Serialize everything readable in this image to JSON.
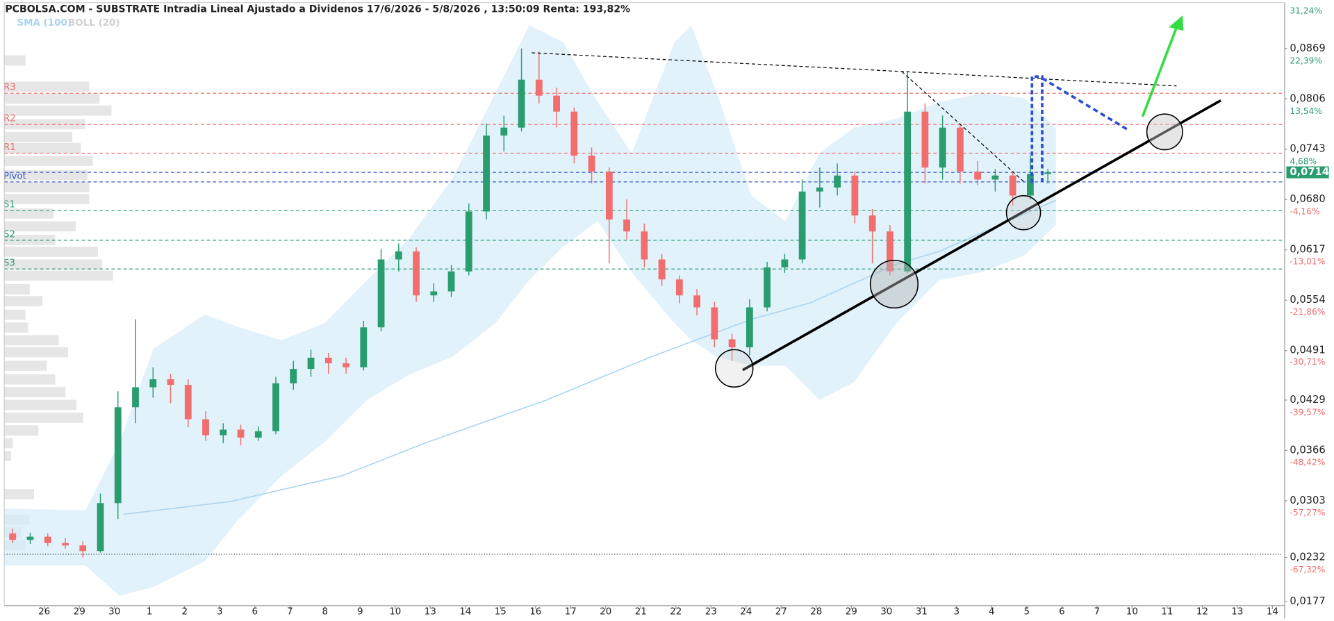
{
  "chart_data": {
    "type": "candlestick",
    "title": "PCBOLSA.COM - SUBSTRATE Intradia Lineal Ajustado a Dividenos 17/6/2026 - 5/8/2026 , 13:50:09 Renta: 193,82%",
    "xlim": [
      -1.14,
      35.3
    ],
    "xticks": [
      {
        "value": 0,
        "label": "26"
      },
      {
        "value": 1,
        "label": "29"
      },
      {
        "value": 2,
        "label": "30"
      },
      {
        "value": 3,
        "label": "1"
      },
      {
        "value": 4,
        "label": "2"
      },
      {
        "value": 5,
        "label": "3"
      },
      {
        "value": 6,
        "label": "6"
      },
      {
        "value": 7,
        "label": "7"
      },
      {
        "value": 8,
        "label": "8"
      },
      {
        "value": 9,
        "label": "9"
      },
      {
        "value": 10,
        "label": "10"
      },
      {
        "value": 11,
        "label": "13"
      },
      {
        "value": 12,
        "label": "14"
      },
      {
        "value": 13,
        "label": "15"
      },
      {
        "value": 14,
        "label": "16"
      },
      {
        "value": 15,
        "label": "17"
      },
      {
        "value": 16,
        "label": "20"
      },
      {
        "value": 17,
        "label": "21"
      },
      {
        "value": 18,
        "label": "22"
      },
      {
        "value": 19,
        "label": "23"
      },
      {
        "value": 20,
        "label": "24"
      },
      {
        "value": 21,
        "label": "27"
      },
      {
        "value": 22,
        "label": "28"
      },
      {
        "value": 23,
        "label": "29"
      },
      {
        "value": 24,
        "label": "30"
      },
      {
        "value": 25,
        "label": "31"
      },
      {
        "value": 26,
        "label": "3"
      },
      {
        "value": 27,
        "label": "4"
      },
      {
        "value": 28,
        "label": "5"
      },
      {
        "value": 29,
        "label": "6"
      },
      {
        "value": 30,
        "label": "7"
      },
      {
        "value": 31,
        "label": "10"
      },
      {
        "value": 32,
        "label": "11"
      },
      {
        "value": 33,
        "label": "12"
      },
      {
        "value": 34,
        "label": "13"
      },
      {
        "value": 35,
        "label": "14"
      }
    ],
    "ylim": [
      0.0177,
      0.0919
    ],
    "yticks": [
      {
        "value": 0.0869,
        "label": "0,0869"
      },
      {
        "value": 0.0806,
        "label": "0,0806"
      },
      {
        "value": 0.0743,
        "label": "0,0743"
      },
      {
        "value": 0.068,
        "label": "0,0680"
      },
      {
        "value": 0.0617,
        "label": "0,0617"
      },
      {
        "value": 0.0554,
        "label": "0,0554"
      },
      {
        "value": 0.0491,
        "label": "0,0491"
      },
      {
        "value": 0.0429,
        "label": "0,0429"
      },
      {
        "value": 0.0366,
        "label": "0,0366"
      },
      {
        "value": 0.0303,
        "label": "0,0303"
      },
      {
        "value": 0.0232,
        "label": "0,0232"
      },
      {
        "value": 0.0177,
        "label": "0,0177"
      }
    ],
    "y2lim": [
      -72.87,
      31.69
    ],
    "y2ticks": [
      {
        "value": 31.24,
        "label": "31,24%"
      },
      {
        "value": 22.39,
        "label": "22,39%"
      },
      {
        "value": 13.54,
        "label": "13,54%"
      },
      {
        "value": 4.68,
        "label": "4,68%"
      },
      {
        "value": -4.16,
        "label": "-4,16%"
      },
      {
        "value": -13.01,
        "label": "-13,01%"
      },
      {
        "value": -21.86,
        "label": "-21,86%"
      },
      {
        "value": -30.71,
        "label": "-30,71%"
      },
      {
        "value": -39.57,
        "label": "-39,57%"
      },
      {
        "value": -48.42,
        "label": "-48,42%"
      },
      {
        "value": -57.27,
        "label": "-57,27%"
      },
      {
        "value": -67.32,
        "label": "-67,32%"
      }
    ],
    "up_color": "#2a9d6f",
    "down_color": "#f26d6d",
    "candles": {
      "x": [
        -0.9,
        -0.4,
        0.1,
        0.6,
        1.1,
        1.6,
        2.1,
        2.6,
        3.1,
        3.6,
        4.1,
        4.6,
        5.1,
        5.6,
        6.1,
        6.6,
        7.1,
        7.6,
        8.1,
        8.6,
        9.1,
        9.6,
        10.1,
        10.6,
        11.1,
        11.6,
        12.1,
        12.6,
        13.1,
        13.6,
        14.1,
        14.6,
        15.1,
        15.6,
        16.1,
        16.6,
        17.1,
        17.6,
        18.1,
        18.6,
        19.1,
        19.6,
        20.1,
        20.6,
        21.1,
        21.6,
        22.1,
        22.6,
        23.1,
        23.6,
        24.1,
        24.6,
        25.1,
        25.6,
        26.1,
        26.6,
        27.1,
        27.6,
        28.1,
        28.6
      ],
      "open": [
        0.0262,
        0.0254,
        0.0258,
        0.025,
        0.0247,
        0.024,
        0.03,
        0.042,
        0.0445,
        0.0455,
        0.0448,
        0.0405,
        0.0385,
        0.0392,
        0.0382,
        0.039,
        0.045,
        0.0468,
        0.0482,
        0.0475,
        0.047,
        0.052,
        0.0605,
        0.0615,
        0.056,
        0.0565,
        0.059,
        0.0665,
        0.076,
        0.077,
        0.083,
        0.081,
        0.079,
        0.0735,
        0.0715,
        0.0655,
        0.064,
        0.0605,
        0.058,
        0.056,
        0.0545,
        0.0505,
        0.0495,
        0.0545,
        0.0595,
        0.0605,
        0.069,
        0.0695,
        0.071,
        0.066,
        0.064,
        0.059,
        0.079,
        0.072,
        0.077,
        0.0715,
        0.0705,
        0.071,
        0.0685,
        0.0712
      ],
      "high": [
        0.0268,
        0.0263,
        0.0262,
        0.0256,
        0.0252,
        0.0312,
        0.044,
        0.053,
        0.047,
        0.0462,
        0.0455,
        0.0415,
        0.04,
        0.0398,
        0.0396,
        0.0458,
        0.0478,
        0.0492,
        0.0488,
        0.0482,
        0.0528,
        0.0618,
        0.0625,
        0.062,
        0.0575,
        0.0598,
        0.0675,
        0.0775,
        0.0785,
        0.0869,
        0.0865,
        0.082,
        0.0795,
        0.0745,
        0.072,
        0.068,
        0.065,
        0.0612,
        0.0585,
        0.0568,
        0.0552,
        0.0512,
        0.0555,
        0.0602,
        0.0612,
        0.0705,
        0.072,
        0.0725,
        0.0715,
        0.0668,
        0.0648,
        0.084,
        0.08,
        0.0785,
        0.0775,
        0.0728,
        0.0718,
        0.0715,
        0.0735,
        0.0718
      ],
      "low": [
        0.025,
        0.0249,
        0.0246,
        0.0243,
        0.0232,
        0.0238,
        0.028,
        0.04,
        0.0432,
        0.0425,
        0.0395,
        0.0378,
        0.0375,
        0.0372,
        0.0378,
        0.0386,
        0.0442,
        0.0458,
        0.0462,
        0.0462,
        0.0466,
        0.0515,
        0.059,
        0.0552,
        0.0552,
        0.0558,
        0.0585,
        0.0655,
        0.074,
        0.0765,
        0.08,
        0.077,
        0.0725,
        0.07,
        0.06,
        0.063,
        0.0595,
        0.0572,
        0.055,
        0.0535,
        0.0495,
        0.0478,
        0.0485,
        0.054,
        0.0588,
        0.06,
        0.067,
        0.0685,
        0.065,
        0.06,
        0.0585,
        0.0588,
        0.07,
        0.0705,
        0.07,
        0.0698,
        0.069,
        0.0672,
        0.068,
        0.07
      ],
      "close": [
        0.0254,
        0.0258,
        0.025,
        0.0247,
        0.024,
        0.03,
        0.042,
        0.0445,
        0.0455,
        0.0448,
        0.0405,
        0.0385,
        0.0392,
        0.0382,
        0.039,
        0.045,
        0.0468,
        0.0482,
        0.0475,
        0.047,
        0.052,
        0.0605,
        0.0615,
        0.056,
        0.0565,
        0.059,
        0.0665,
        0.076,
        0.077,
        0.083,
        0.081,
        0.079,
        0.0735,
        0.0715,
        0.0655,
        0.064,
        0.0605,
        0.058,
        0.056,
        0.0545,
        0.0505,
        0.0495,
        0.0545,
        0.0595,
        0.0605,
        0.069,
        0.0695,
        0.071,
        0.066,
        0.064,
        0.059,
        0.079,
        0.072,
        0.077,
        0.0715,
        0.0705,
        0.071,
        0.0685,
        0.0712,
        0.0714
      ]
    },
    "bollinger": {
      "name": "BOLL (20)",
      "color": "#d6ecfa",
      "x": [
        -1.14,
        1.17,
        2.14,
        3.11,
        4.57,
        5.55,
        6.76,
        7.98,
        9.2,
        10.41,
        11.63,
        12.85,
        13.82,
        14.79,
        15.77,
        16.74,
        17.96,
        18.44,
        19.17,
        20.15,
        21.12,
        22.09,
        23.07,
        24.28,
        25.5,
        26.72,
        27.93,
        28.83
      ],
      "upper": [
        0.0293,
        0.0291,
        0.0376,
        0.0493,
        0.0536,
        0.052,
        0.0504,
        0.0525,
        0.0579,
        0.0632,
        0.0706,
        0.0813,
        0.0898,
        0.0877,
        0.0802,
        0.0738,
        0.0877,
        0.0898,
        0.0813,
        0.0685,
        0.0653,
        0.0738,
        0.077,
        0.0781,
        0.0802,
        0.0813,
        0.0807,
        0.077
      ],
      "lower": [
        0.0222,
        0.0222,
        0.0184,
        0.0195,
        0.0227,
        0.028,
        0.0334,
        0.0376,
        0.0429,
        0.0461,
        0.0483,
        0.0525,
        0.0579,
        0.0621,
        0.0653,
        0.0589,
        0.0525,
        0.0504,
        0.0483,
        0.0472,
        0.0472,
        0.0429,
        0.0451,
        0.0525,
        0.0579,
        0.0589,
        0.061,
        0.0648
      ]
    },
    "sma": {
      "name": "SMA (100)",
      "color": "#a9d4ef",
      "x": [
        2.26,
        5.3,
        8.47,
        10.9,
        14.31,
        17.23,
        20.15,
        21.85,
        24.28,
        25.5,
        28.83
      ],
      "values": [
        0.0286,
        0.0302,
        0.0334,
        0.0376,
        0.0429,
        0.0482,
        0.053,
        0.0551,
        0.0599,
        0.0615,
        0.0679
      ]
    },
    "levels": [
      {
        "name": "R3",
        "value": 0.0813,
        "color": "#f26d6d"
      },
      {
        "name": "R2",
        "value": 0.0774,
        "color": "#f26d6d"
      },
      {
        "name": "R1",
        "value": 0.0738,
        "color": "#f26d6d"
      },
      {
        "name": "Pivot",
        "value": 0.0702,
        "color": "#3b5bc4"
      },
      {
        "name": "S1",
        "value": 0.0666,
        "color": "#2a9d6f"
      },
      {
        "name": "S2",
        "value": 0.0629,
        "color": "#2a9d6f"
      },
      {
        "name": "S3",
        "value": 0.0593,
        "color": "#2a9d6f"
      }
    ],
    "last_price": 0.0714,
    "last_price_label": "0,0714",
    "last_price_color": "#2a9d6f",
    "base_line": 0.0236
  }
}
